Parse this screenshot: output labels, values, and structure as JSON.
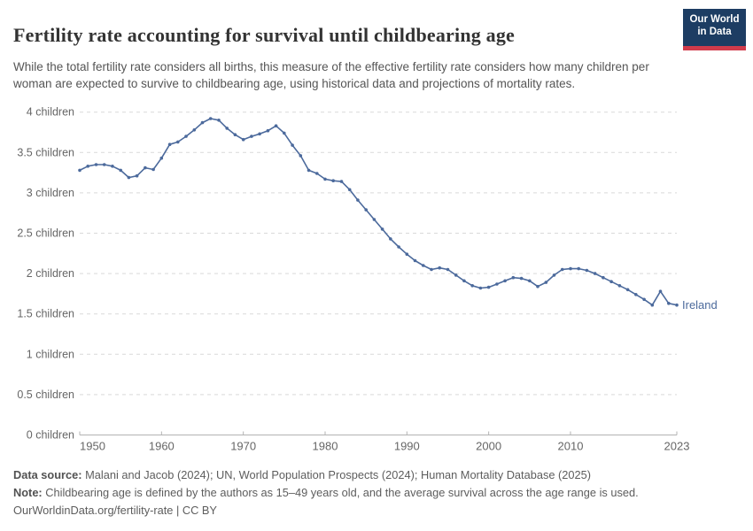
{
  "header": {
    "title": "Fertility rate accounting for survival until childbearing age",
    "subtitle": "While the total fertility rate considers all births, this measure of the effective fertility rate considers how many children per woman are expected to survive to childbearing age, using historical data and projections of mortality rates.",
    "logo": {
      "line1": "Our World",
      "line2": "in Data",
      "bg_color": "#1d3d63",
      "bar_color": "#d13b4b"
    }
  },
  "footer": {
    "data_source_label": "Data source:",
    "data_source_text": " Malani and Jacob (2024); UN, World Population Prospects (2024); Human Mortality Database (2025)",
    "note_label": "Note:",
    "note_text": " Childbearing age is defined by the authors as 15–49 years old, and the average survival across the age range is used.",
    "license_text": "OurWorldinData.org/fertility-rate | CC BY"
  },
  "chart_data": {
    "type": "line",
    "title": "Fertility rate accounting for survival until childbearing age",
    "series": [
      {
        "name": "Ireland",
        "x": [
          1950,
          1951,
          1952,
          1953,
          1954,
          1955,
          1956,
          1957,
          1958,
          1959,
          1960,
          1961,
          1962,
          1963,
          1964,
          1965,
          1966,
          1967,
          1968,
          1969,
          1970,
          1971,
          1972,
          1973,
          1974,
          1975,
          1976,
          1977,
          1978,
          1979,
          1980,
          1981,
          1982,
          1983,
          1984,
          1985,
          1986,
          1987,
          1988,
          1989,
          1990,
          1991,
          1992,
          1993,
          1994,
          1995,
          1996,
          1997,
          1998,
          1999,
          2000,
          2001,
          2002,
          2003,
          2004,
          2005,
          2006,
          2007,
          2008,
          2009,
          2010,
          2011,
          2012,
          2013,
          2014,
          2015,
          2016,
          2017,
          2018,
          2019,
          2020,
          2021,
          2022,
          2023
        ],
        "values": [
          3.28,
          3.33,
          3.35,
          3.35,
          3.33,
          3.28,
          3.19,
          3.21,
          3.31,
          3.29,
          3.43,
          3.6,
          3.63,
          3.7,
          3.78,
          3.87,
          3.92,
          3.9,
          3.8,
          3.72,
          3.66,
          3.7,
          3.73,
          3.77,
          3.83,
          3.74,
          3.59,
          3.46,
          3.28,
          3.24,
          3.17,
          3.15,
          3.14,
          3.04,
          2.91,
          2.79,
          2.67,
          2.55,
          2.43,
          2.33,
          2.24,
          2.16,
          2.1,
          2.05,
          2.07,
          2.05,
          1.98,
          1.91,
          1.85,
          1.82,
          1.83,
          1.87,
          1.91,
          1.95,
          1.94,
          1.91,
          1.84,
          1.89,
          1.98,
          2.05,
          2.06,
          2.06,
          2.04,
          2.0,
          1.95,
          1.9,
          1.85,
          1.8,
          1.74,
          1.68,
          1.61,
          1.78,
          1.63,
          1.61
        ]
      }
    ],
    "xlabel": "",
    "ylabel": "",
    "xlim": [
      1950,
      2023
    ],
    "ylim": [
      0,
      4
    ],
    "x_ticks": [
      1950,
      1960,
      1970,
      1980,
      1990,
      2000,
      2010,
      2023
    ],
    "y_ticks": [
      0,
      0.5,
      1,
      1.5,
      2,
      2.5,
      3,
      3.5,
      4
    ],
    "y_tick_labels": [
      "0 children",
      "0.5 children",
      "1 children",
      "1.5 children",
      "2 children",
      "2.5 children",
      "3 children",
      "3.5 children",
      "4 children"
    ],
    "grid": "horizontal-dashed",
    "legend_position": "end-of-line-label",
    "end_label": "Ireland",
    "colors": {
      "line": "#4C6A9C",
      "grid": "#d9d9d9",
      "axis": "#b3b3b3",
      "tick_text": "#666666"
    }
  }
}
